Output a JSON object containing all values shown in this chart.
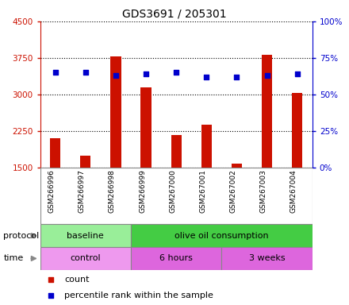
{
  "title": "GDS3691 / 205301",
  "samples": [
    "GSM266996",
    "GSM266997",
    "GSM266998",
    "GSM266999",
    "GSM267000",
    "GSM267001",
    "GSM267002",
    "GSM267003",
    "GSM267004"
  ],
  "bar_values": [
    2100,
    1750,
    3780,
    3150,
    2170,
    2380,
    1580,
    3820,
    3040
  ],
  "bar_base": 1500,
  "dot_values": [
    65,
    65,
    63,
    64,
    65,
    62,
    62,
    63,
    64
  ],
  "ylim_left": [
    1500,
    4500
  ],
  "ylim_right": [
    0,
    100
  ],
  "yticks_left": [
    1500,
    2250,
    3000,
    3750,
    4500
  ],
  "yticks_right": [
    0,
    25,
    50,
    75,
    100
  ],
  "bar_color": "#cc1100",
  "dot_color": "#0000cc",
  "grid_color": "#000000",
  "protocol_groups": [
    {
      "label": "baseline",
      "start": 0,
      "end": 3,
      "color": "#99ee99"
    },
    {
      "label": "olive oil consumption",
      "start": 3,
      "end": 9,
      "color": "#44cc44"
    }
  ],
  "time_groups": [
    {
      "label": "control",
      "start": 0,
      "end": 3,
      "color": "#ee99ee"
    },
    {
      "label": "6 hours",
      "start": 3,
      "end": 6,
      "color": "#dd66dd"
    },
    {
      "label": "3 weeks",
      "start": 6,
      "end": 9,
      "color": "#dd66dd"
    }
  ],
  "sample_bg": "#cccccc",
  "left_axis_color": "#cc1100",
  "right_axis_color": "#0000cc",
  "title_fontsize": 10,
  "tick_fontsize": 7.5,
  "sample_fontsize": 6.5,
  "band_fontsize": 8,
  "legend_fontsize": 8,
  "legend_count_label": "count",
  "legend_pct_label": "percentile rank within the sample",
  "protocol_label": "protocol",
  "time_label": "time"
}
